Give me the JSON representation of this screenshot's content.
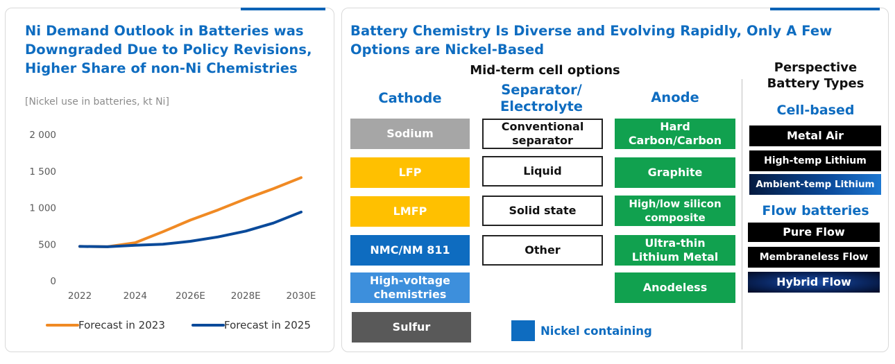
{
  "left_panel": {
    "title_lines": [
      "Ni Demand Outlook in Batteries was",
      "Downgraded Due to Policy Revisions,",
      "Higher Share of non-Ni Chemistries"
    ],
    "unit": "[Nickel use in batteries, kt Ni]"
  },
  "chart_data": {
    "type": "line",
    "title": "",
    "xlabel": "",
    "ylabel": "[Nickel use in batteries, kt Ni]",
    "x": [
      2022,
      2023,
      2024,
      2025,
      2026,
      2027,
      2028,
      2029,
      2030
    ],
    "x_tick_labels": [
      {
        "x": 2022,
        "label": "2022"
      },
      {
        "x": 2024,
        "label": "2024"
      },
      {
        "x": 2026,
        "label": "2026E"
      },
      {
        "x": 2028,
        "label": "2028E"
      },
      {
        "x": 2030,
        "label": "2030E"
      }
    ],
    "y_ticks": [
      0,
      500,
      1000,
      1500,
      2000
    ],
    "y_tick_labels": [
      "0",
      "500",
      "1 000",
      "1 500",
      "2 000"
    ],
    "ylim": [
      0,
      2000
    ],
    "xlim": [
      2022,
      2030
    ],
    "grid": false,
    "legend_position": "bottom",
    "series": [
      {
        "name": "Forecast in 2023",
        "color": "#f08a24",
        "values": [
          470,
          465,
          520,
          670,
          830,
          970,
          1120,
          1260,
          1410
        ]
      },
      {
        "name": "Forecast in 2025",
        "color": "#0a4a9a",
        "values": [
          470,
          465,
          485,
          500,
          540,
          600,
          680,
          790,
          940
        ]
      }
    ]
  },
  "right_panel": {
    "title_lines": [
      "Battery Chemistry Is Diverse and Evolving Rapidly, Only A Few",
      "Options are Nickel-Based"
    ],
    "midterm_header": "Mid-term cell options",
    "cathode": {
      "title": "Cathode",
      "items": [
        "Sodium",
        "LFP",
        "LMFP",
        "NMC/NM 811",
        "High-voltage chemistries",
        "Sulfur"
      ]
    },
    "separator": {
      "title_lines": [
        "Separator/",
        "Electrolyte"
      ],
      "items": [
        "Conventional separator",
        "Liquid",
        "Solid state",
        "Other"
      ]
    },
    "anode": {
      "title": "Anode",
      "items": [
        "Hard Carbon/Carbon",
        "Graphite",
        "High/low silicon composite",
        "Ultra-thin Lithium Metal",
        "Anodeless"
      ]
    },
    "perspective": {
      "header_lines": [
        "Perspective",
        "Battery Types"
      ],
      "cell_based": {
        "title": "Cell-based",
        "items": [
          "Metal Air",
          "High-temp Lithium",
          "Ambient-temp Lithium"
        ]
      },
      "flow": {
        "title": "Flow batteries",
        "items": [
          "Pure Flow",
          "Membraneless Flow",
          "Hybrid Flow"
        ]
      }
    },
    "legend": {
      "label": "Nickel containing",
      "color": "#0e6cc0"
    }
  }
}
